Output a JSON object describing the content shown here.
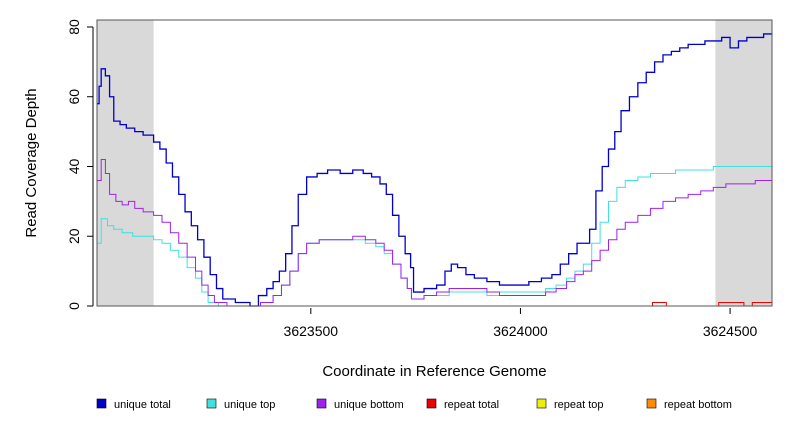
{
  "chart_data": {
    "type": "line",
    "title": "",
    "xlabel": "Coordinate in Reference Genome",
    "ylabel": "Read Coverage Depth",
    "xlim": [
      3622990,
      3624600
    ],
    "ylim": [
      0,
      82
    ],
    "x_ticks": [
      3623500,
      3624000,
      3624500
    ],
    "x_tick_labels": [
      "3623500",
      "3624000",
      "3624500"
    ],
    "y_ticks": [
      0,
      20,
      40,
      60,
      80
    ],
    "y_tick_labels": [
      "0",
      "20",
      "40",
      "60",
      "80"
    ],
    "shaded_regions": [
      {
        "x0": 3622990,
        "x1": 3623125,
        "color": "#d9d9d9"
      },
      {
        "x0": 3624465,
        "x1": 3624600,
        "color": "#d9d9d9"
      }
    ],
    "series": [
      {
        "name": "unique total",
        "color": "#0000cd",
        "points": [
          [
            3622990,
            58
          ],
          [
            3622995,
            63
          ],
          [
            3623000,
            68
          ],
          [
            3623010,
            66
          ],
          [
            3623020,
            60
          ],
          [
            3623030,
            53
          ],
          [
            3623045,
            52
          ],
          [
            3623060,
            51
          ],
          [
            3623080,
            50
          ],
          [
            3623100,
            49
          ],
          [
            3623125,
            47
          ],
          [
            3623140,
            45
          ],
          [
            3623155,
            41
          ],
          [
            3623170,
            37
          ],
          [
            3623185,
            32
          ],
          [
            3623200,
            27
          ],
          [
            3623215,
            23
          ],
          [
            3623230,
            19
          ],
          [
            3623245,
            14
          ],
          [
            3623260,
            9
          ],
          [
            3623275,
            5
          ],
          [
            3623290,
            2
          ],
          [
            3623320,
            1
          ],
          [
            3623355,
            0
          ],
          [
            3623375,
            3
          ],
          [
            3623395,
            5
          ],
          [
            3623410,
            7
          ],
          [
            3623425,
            10
          ],
          [
            3623440,
            15
          ],
          [
            3623455,
            23
          ],
          [
            3623470,
            32
          ],
          [
            3623490,
            37
          ],
          [
            3623515,
            38
          ],
          [
            3623540,
            39
          ],
          [
            3623570,
            38
          ],
          [
            3623600,
            39
          ],
          [
            3623625,
            38
          ],
          [
            3623645,
            37
          ],
          [
            3623665,
            35
          ],
          [
            3623680,
            32
          ],
          [
            3623695,
            26
          ],
          [
            3623710,
            20
          ],
          [
            3623725,
            15
          ],
          [
            3623738,
            11
          ],
          [
            3623745,
            4
          ],
          [
            3623770,
            5
          ],
          [
            3623800,
            6
          ],
          [
            3623820,
            10
          ],
          [
            3623835,
            12
          ],
          [
            3623850,
            11
          ],
          [
            3623870,
            9
          ],
          [
            3623890,
            8
          ],
          [
            3623920,
            7
          ],
          [
            3623950,
            6
          ],
          [
            3623990,
            6
          ],
          [
            3624020,
            7
          ],
          [
            3624050,
            8
          ],
          [
            3624075,
            9
          ],
          [
            3624095,
            12
          ],
          [
            3624115,
            15
          ],
          [
            3624135,
            18
          ],
          [
            3624150,
            18
          ],
          [
            3624165,
            22
          ],
          [
            3624180,
            33
          ],
          [
            3624195,
            40
          ],
          [
            3624210,
            45
          ],
          [
            3624225,
            50
          ],
          [
            3624240,
            56
          ],
          [
            3624260,
            60
          ],
          [
            3624280,
            64
          ],
          [
            3624300,
            67
          ],
          [
            3624320,
            70
          ],
          [
            3624340,
            72
          ],
          [
            3624360,
            73
          ],
          [
            3624380,
            74
          ],
          [
            3624400,
            75
          ],
          [
            3624420,
            75
          ],
          [
            3624440,
            76
          ],
          [
            3624460,
            76
          ],
          [
            3624480,
            77
          ],
          [
            3624500,
            74
          ],
          [
            3624520,
            76
          ],
          [
            3624540,
            77
          ],
          [
            3624560,
            77
          ],
          [
            3624580,
            78
          ],
          [
            3624600,
            78
          ]
        ]
      },
      {
        "name": "unique top",
        "color": "#40e0e0",
        "points": [
          [
            3622990,
            18
          ],
          [
            3623000,
            25
          ],
          [
            3623015,
            23
          ],
          [
            3623030,
            22
          ],
          [
            3623050,
            21
          ],
          [
            3623075,
            20
          ],
          [
            3623100,
            20
          ],
          [
            3623125,
            19
          ],
          [
            3623145,
            18
          ],
          [
            3623165,
            16
          ],
          [
            3623185,
            14
          ],
          [
            3623205,
            11
          ],
          [
            3623225,
            8
          ],
          [
            3623240,
            4
          ],
          [
            3623255,
            1
          ],
          [
            3623280,
            0
          ],
          [
            3623350,
            0
          ],
          [
            3623380,
            1
          ],
          [
            3623410,
            3
          ],
          [
            3623430,
            6
          ],
          [
            3623450,
            10
          ],
          [
            3623470,
            15
          ],
          [
            3623490,
            18
          ],
          [
            3623520,
            19
          ],
          [
            3623560,
            19
          ],
          [
            3623600,
            19
          ],
          [
            3623630,
            18
          ],
          [
            3623655,
            17
          ],
          [
            3623675,
            15
          ],
          [
            3623695,
            12
          ],
          [
            3623715,
            8
          ],
          [
            3623730,
            5
          ],
          [
            3623740,
            2
          ],
          [
            3623770,
            3
          ],
          [
            3623800,
            3
          ],
          [
            3623830,
            4
          ],
          [
            3623860,
            4
          ],
          [
            3623890,
            4
          ],
          [
            3623920,
            3
          ],
          [
            3623950,
            4
          ],
          [
            3623990,
            4
          ],
          [
            3624030,
            4
          ],
          [
            3624060,
            5
          ],
          [
            3624085,
            6
          ],
          [
            3624110,
            8
          ],
          [
            3624130,
            10
          ],
          [
            3624150,
            12
          ],
          [
            3624170,
            18
          ],
          [
            3624190,
            24
          ],
          [
            3624210,
            30
          ],
          [
            3624230,
            34
          ],
          [
            3624250,
            36
          ],
          [
            3624280,
            37
          ],
          [
            3624310,
            38
          ],
          [
            3624340,
            38
          ],
          [
            3624370,
            39
          ],
          [
            3624400,
            39
          ],
          [
            3624430,
            39
          ],
          [
            3624460,
            40
          ],
          [
            3624490,
            40
          ],
          [
            3624520,
            40
          ],
          [
            3624560,
            40
          ],
          [
            3624600,
            41
          ]
        ]
      },
      {
        "name": "unique bottom",
        "color": "#a020f0",
        "points": [
          [
            3622990,
            36
          ],
          [
            3623000,
            42
          ],
          [
            3623010,
            38
          ],
          [
            3623020,
            32
          ],
          [
            3623035,
            30
          ],
          [
            3623050,
            29
          ],
          [
            3623065,
            30
          ],
          [
            3623080,
            28
          ],
          [
            3623100,
            27
          ],
          [
            3623125,
            26
          ],
          [
            3623145,
            24
          ],
          [
            3623165,
            21
          ],
          [
            3623185,
            18
          ],
          [
            3623205,
            14
          ],
          [
            3623225,
            10
          ],
          [
            3623240,
            6
          ],
          [
            3623255,
            3
          ],
          [
            3623270,
            1
          ],
          [
            3623300,
            0
          ],
          [
            3623350,
            0
          ],
          [
            3623380,
            1
          ],
          [
            3623410,
            3
          ],
          [
            3623430,
            6
          ],
          [
            3623450,
            10
          ],
          [
            3623470,
            15
          ],
          [
            3623490,
            18
          ],
          [
            3623520,
            19
          ],
          [
            3623560,
            19
          ],
          [
            3623600,
            20
          ],
          [
            3623630,
            19
          ],
          [
            3623655,
            18
          ],
          [
            3623675,
            16
          ],
          [
            3623695,
            12
          ],
          [
            3623715,
            8
          ],
          [
            3623730,
            5
          ],
          [
            3623740,
            2
          ],
          [
            3623770,
            3
          ],
          [
            3623800,
            4
          ],
          [
            3623830,
            5
          ],
          [
            3623860,
            5
          ],
          [
            3623890,
            5
          ],
          [
            3623920,
            4
          ],
          [
            3623950,
            3
          ],
          [
            3623990,
            3
          ],
          [
            3624030,
            3
          ],
          [
            3624060,
            4
          ],
          [
            3624085,
            5
          ],
          [
            3624110,
            7
          ],
          [
            3624130,
            9
          ],
          [
            3624150,
            10
          ],
          [
            3624170,
            13
          ],
          [
            3624190,
            16
          ],
          [
            3624210,
            19
          ],
          [
            3624230,
            22
          ],
          [
            3624250,
            24
          ],
          [
            3624280,
            26
          ],
          [
            3624310,
            28
          ],
          [
            3624340,
            30
          ],
          [
            3624370,
            31
          ],
          [
            3624400,
            32
          ],
          [
            3624430,
            33
          ],
          [
            3624460,
            34
          ],
          [
            3624490,
            35
          ],
          [
            3624520,
            35
          ],
          [
            3624560,
            36
          ],
          [
            3624600,
            36
          ]
        ]
      },
      {
        "name": "repeat total",
        "color": "#ee0000",
        "points": [
          [
            3622990,
            0
          ],
          [
            3624313,
            0
          ],
          [
            3624315,
            1
          ],
          [
            3624345,
            1
          ],
          [
            3624348,
            0
          ],
          [
            3624470,
            0
          ],
          [
            3624473,
            1
          ],
          [
            3624530,
            1
          ],
          [
            3624533,
            0
          ],
          [
            3624550,
            0
          ],
          [
            3624553,
            1
          ],
          [
            3624600,
            1
          ]
        ]
      },
      {
        "name": "repeat top",
        "color": "#eeee00",
        "points": [
          [
            3622990,
            0
          ],
          [
            3624600,
            0
          ]
        ]
      },
      {
        "name": "repeat bottom",
        "color": "#ff8c00",
        "points": [
          [
            3622990,
            0
          ],
          [
            3624600,
            0
          ]
        ]
      }
    ],
    "legend": [
      {
        "label": "unique total",
        "color": "#0000cd"
      },
      {
        "label": "unique top",
        "color": "#40e0e0"
      },
      {
        "label": "unique bottom",
        "color": "#a020f0"
      },
      {
        "label": "repeat total",
        "color": "#ee0000"
      },
      {
        "label": "repeat top",
        "color": "#eeee00"
      },
      {
        "label": "repeat bottom",
        "color": "#ff8c00"
      }
    ],
    "legend_position": "bottom"
  }
}
